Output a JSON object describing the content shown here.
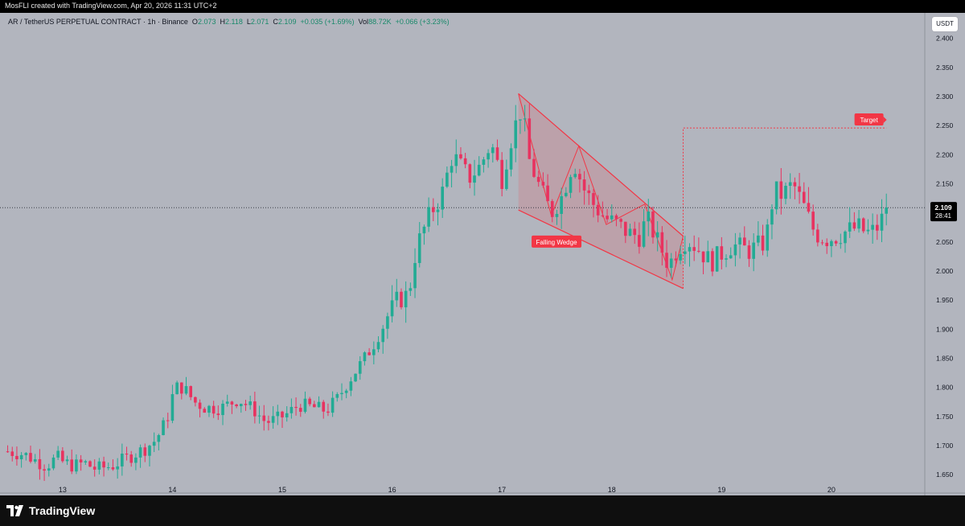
{
  "credit": "MosFLI created with TradingView.com, Apr 20, 2026 11:31 UTC+2",
  "legend": {
    "symbol": "AR / TetherUS PERPETUAL CONTRACT · 1h · Binance",
    "o_label": "O",
    "o": "2.073",
    "h_label": "H",
    "h": "2.118",
    "l_label": "L",
    "l": "2.071",
    "c_label": "C",
    "c": "2.109",
    "change": "+0.035 (+1.69%)",
    "vol_label": "Vol",
    "vol": "88.72K",
    "vol_change": "+0.066 (+3.23%)"
  },
  "currency_button": "USDT",
  "price_label": {
    "price": "2.109",
    "countdown": "28:41"
  },
  "brand": {
    "name": "TradingView",
    "icon": "tradingview-logo-icon"
  },
  "colors": {
    "background": "#b2b5be",
    "up": "#22ab94",
    "down": "#e8325f",
    "annotation": "#f23645",
    "price_label_bg": "#000000"
  },
  "annotations": {
    "wedge_label": "Falling Wedge",
    "target_label": "Target"
  },
  "chart_data": {
    "type": "candlestick",
    "symbol": "AR/USDT",
    "interval": "1h",
    "x_labels": [
      "13",
      "14",
      "15",
      "16",
      "17",
      "18",
      "19",
      "20"
    ],
    "y_ticks": [
      "2.400",
      "2.350",
      "2.300",
      "2.250",
      "2.200",
      "2.150",
      "2.100",
      "2.050",
      "2.000",
      "1.950",
      "1.900",
      "1.850",
      "1.800",
      "1.750",
      "1.700",
      "1.650"
    ],
    "y_values": [
      2.4,
      2.35,
      2.3,
      2.25,
      2.2,
      2.15,
      2.1,
      2.05,
      2.0,
      1.95,
      1.9,
      1.85,
      1.8,
      1.75,
      1.7,
      1.65
    ],
    "ylim": [
      1.635,
      2.43
    ],
    "current_price": 2.109,
    "target_price": 2.25,
    "grid": false,
    "price_path": [
      [
        12.5,
        1.69
      ],
      [
        12.65,
        1.685
      ],
      [
        12.75,
        1.675
      ],
      [
        12.85,
        1.665
      ],
      [
        12.95,
        1.68
      ],
      [
        13.0,
        1.672
      ],
      [
        13.1,
        1.665
      ],
      [
        13.2,
        1.67
      ],
      [
        13.3,
        1.66
      ],
      [
        13.45,
        1.665
      ],
      [
        13.55,
        1.675
      ],
      [
        13.65,
        1.685
      ],
      [
        13.75,
        1.695
      ],
      [
        13.85,
        1.71
      ],
      [
        13.95,
        1.745
      ],
      [
        14.02,
        1.8
      ],
      [
        14.1,
        1.8
      ],
      [
        14.2,
        1.775
      ],
      [
        14.3,
        1.765
      ],
      [
        14.45,
        1.765
      ],
      [
        14.6,
        1.78
      ],
      [
        14.75,
        1.76
      ],
      [
        14.85,
        1.74
      ],
      [
        14.95,
        1.745
      ],
      [
        15.05,
        1.755
      ],
      [
        15.15,
        1.77
      ],
      [
        15.3,
        1.765
      ],
      [
        15.4,
        1.76
      ],
      [
        15.5,
        1.78
      ],
      [
        15.6,
        1.81
      ],
      [
        15.75,
        1.85
      ],
      [
        15.85,
        1.88
      ],
      [
        15.95,
        1.92
      ],
      [
        16.05,
        1.95
      ],
      [
        16.15,
        1.96
      ],
      [
        16.22,
        2.04
      ],
      [
        16.35,
        2.1
      ],
      [
        16.45,
        2.13
      ],
      [
        16.55,
        2.2
      ],
      [
        16.7,
        2.16
      ],
      [
        16.8,
        2.18
      ],
      [
        16.9,
        2.22
      ],
      [
        17.0,
        2.16
      ],
      [
        17.1,
        2.24
      ],
      [
        17.18,
        2.28
      ],
      [
        17.25,
        2.19
      ],
      [
        17.35,
        2.14
      ],
      [
        17.45,
        2.1
      ],
      [
        17.55,
        2.13
      ],
      [
        17.65,
        2.19
      ],
      [
        17.75,
        2.14
      ],
      [
        17.85,
        2.11
      ],
      [
        17.95,
        2.09
      ],
      [
        18.05,
        2.08
      ],
      [
        18.15,
        2.065
      ],
      [
        18.25,
        2.06
      ],
      [
        18.32,
        2.09
      ],
      [
        18.42,
        2.05
      ],
      [
        18.52,
        2.01
      ],
      [
        18.6,
        2.04
      ],
      [
        18.68,
        2.055
      ],
      [
        18.78,
        2.04
      ],
      [
        18.9,
        2.015
      ],
      [
        19.0,
        2.03
      ],
      [
        19.1,
        2.045
      ],
      [
        19.25,
        2.035
      ],
      [
        19.4,
        2.05
      ],
      [
        19.48,
        2.14
      ],
      [
        19.55,
        2.13
      ],
      [
        19.65,
        2.15
      ],
      [
        19.75,
        2.11
      ],
      [
        19.85,
        2.065
      ],
      [
        19.95,
        2.055
      ],
      [
        20.05,
        2.06
      ],
      [
        20.15,
        2.07
      ],
      [
        20.25,
        2.075
      ],
      [
        20.32,
        2.065
      ],
      [
        20.4,
        2.07
      ],
      [
        20.45,
        2.085
      ],
      [
        20.5,
        2.109
      ]
    ],
    "falling_wedge": {
      "upper_line": [
        [
          17.15,
          2.305
        ],
        [
          18.65,
          2.06
        ]
      ],
      "lower_line": [
        [
          17.15,
          2.105
        ],
        [
          18.65,
          1.97
        ]
      ],
      "zigzag": [
        [
          17.15,
          2.305
        ],
        [
          17.45,
          2.095
        ],
        [
          17.7,
          2.215
        ],
        [
          17.95,
          2.08
        ],
        [
          18.3,
          2.115
        ],
        [
          18.55,
          1.985
        ],
        [
          18.65,
          2.06
        ]
      ]
    },
    "target_path": [
      [
        18.65,
        1.97
      ],
      [
        18.65,
        2.246
      ],
      [
        20.5,
        2.246
      ]
    ]
  }
}
